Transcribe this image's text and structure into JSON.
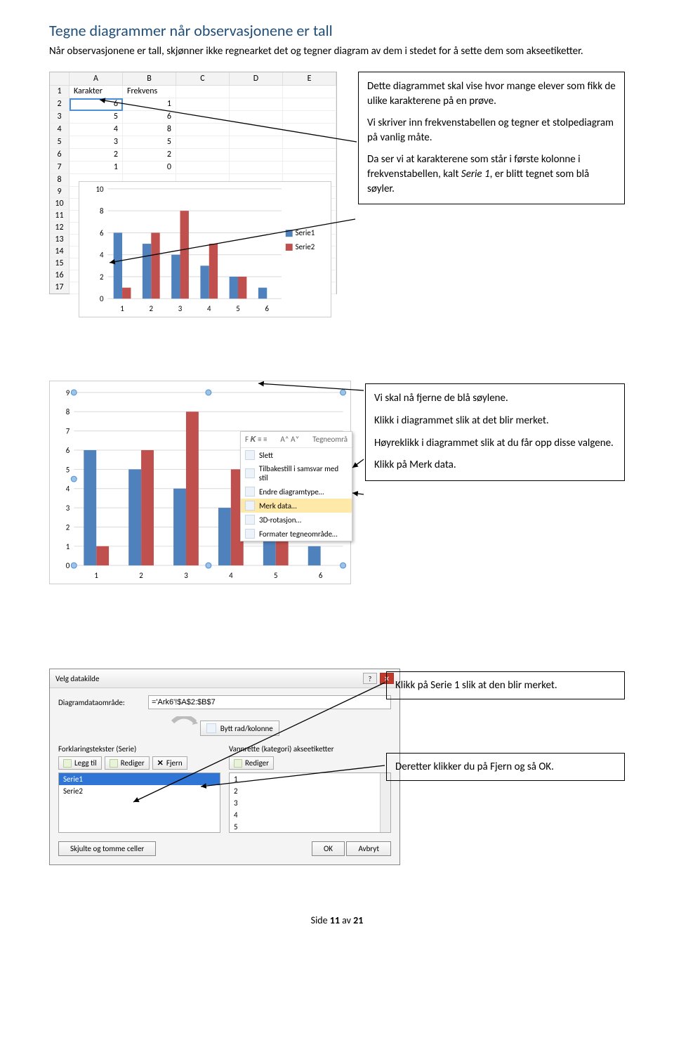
{
  "heading": "Tegne diagrammer når observasjonene er tall",
  "intro": "Når observasjonene er tall, skjønner ikke regnearket det og tegner diagram av dem i stedet for å sette dem som akseetiketter.",
  "excel": {
    "columns": [
      "A",
      "B",
      "C",
      "D",
      "E"
    ],
    "row_numbers": [
      1,
      2,
      3,
      4,
      5,
      6,
      7,
      8,
      9,
      10,
      11,
      12,
      13,
      14,
      15,
      16,
      17
    ],
    "header_row": [
      "Karakter",
      "Frekvens",
      "",
      "",
      ""
    ],
    "data": [
      [
        "6",
        "1"
      ],
      [
        "5",
        "6"
      ],
      [
        "4",
        "8"
      ],
      [
        "3",
        "5"
      ],
      [
        "2",
        "2"
      ],
      [
        "1",
        "0"
      ]
    ]
  },
  "chart1": {
    "type": "bar",
    "categories": [
      "1",
      "2",
      "3",
      "4",
      "5",
      "6"
    ],
    "series": [
      {
        "name": "Serie1",
        "color": "#4f81bd",
        "values": [
          6,
          5,
          4,
          3,
          2,
          1
        ]
      },
      {
        "name": "Serie2",
        "color": "#c0504d",
        "values": [
          1,
          6,
          8,
          5,
          2,
          0
        ]
      }
    ],
    "y_ticks": [
      0,
      2,
      4,
      6,
      8,
      10
    ],
    "ylim": [
      0,
      10
    ],
    "grid_color": "#d9d9d9",
    "bg": "#ffffff",
    "axis_fontsize": 11,
    "legend_box": "#4f81bd"
  },
  "note1": {
    "p1": "Dette diagrammet skal vise hvor mange elever som fikk de ulike karakterene på en prøve.",
    "p2": "Vi skriver inn frekvenstabellen og tegner et stolpediagram på vanlig måte.",
    "p3a": "Da ser vi at karakterene som står i første kolonne i frekvenstabellen, kalt ",
    "p3b": "Serie 1",
    "p3c": ", er blitt tegnet som blå søyler."
  },
  "chart2": {
    "type": "bar",
    "categories": [
      "1",
      "2",
      "3",
      "4",
      "5",
      "6"
    ],
    "series": [
      {
        "name": "Serie1",
        "color": "#4f81bd",
        "values": [
          6,
          5,
          4,
          3,
          2,
          1
        ]
      },
      {
        "name": "Serie2",
        "color": "#c0504d",
        "values": [
          1,
          6,
          8,
          5,
          2,
          0
        ]
      }
    ],
    "y_ticks": [
      0,
      1,
      2,
      3,
      4,
      5,
      6,
      7,
      8,
      9
    ],
    "ylim": [
      0,
      9
    ],
    "grid_color": "#d9d9d9",
    "handle_color": "#9cc2e5",
    "ctx_header": "Tegneområ",
    "ctx_items": [
      "Slett",
      "Tilbakestill i samsvar med stil",
      "Endre diagramtype…",
      "Merk data…",
      "3D-rotasjon…",
      "Formater tegneområde…"
    ],
    "ctx_highlight_index": 3
  },
  "note2": {
    "p1": "Vi skal nå fjerne de blå søylene.",
    "p2": "Klikk i diagrammet slik at det blir merket.",
    "p3": "Høyreklikk i diagrammet slik at du får opp disse valgene.",
    "p4a": "Klikk på ",
    "p4b": "Merk data",
    "p4c": "."
  },
  "dialog": {
    "title": "Velg datakilde",
    "range_label": "Diagramdataområde:",
    "range_value": "='Ark6'!$A$2:$B$7",
    "swap_label": "Bytt rad/kolonne",
    "left_title": "Forklaringstekster (Serie)",
    "right_title": "Vannrette (kategori) akseetiketter",
    "btn_add": "Legg til",
    "btn_edit": "Rediger",
    "btn_remove": "Fjern",
    "btn_edit2": "Rediger",
    "series_list": [
      "Serie1",
      "Serie2"
    ],
    "cat_list": [
      "1",
      "2",
      "3",
      "4",
      "5"
    ],
    "hidden_btn": "Skjulte og tomme celler",
    "ok": "OK",
    "cancel": "Avbryt"
  },
  "note3a_a": "Klikk på ",
  "note3a_b": "Serie 1",
  "note3a_c": " slik at den blir merket.",
  "note3b_a": "Deretter klikker du på ",
  "note3b_b": "Fjern",
  "note3b_c": " og så ",
  "note3b_d": "OK",
  "note3b_e": ".",
  "footer_a": "Side ",
  "footer_b": "11",
  "footer_c": " av ",
  "footer_d": "21"
}
